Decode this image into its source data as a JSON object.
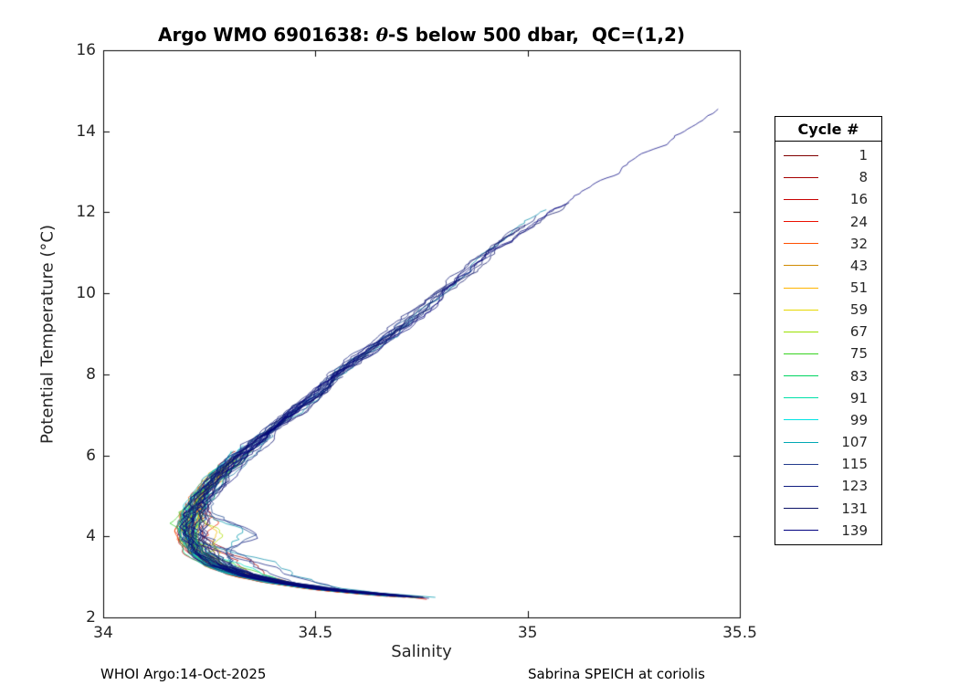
{
  "title": {
    "prefix": "Argo WMO 6901638: ",
    "theta": "θ",
    "suffix": "-S below 500 dbar,  QC=(1,2)"
  },
  "footer": {
    "left": "WHOI Argo:14-Oct-2025",
    "right": "Sabrina SPEICH at coriolis"
  },
  "chart_data": {
    "type": "line",
    "title": "Argo WMO 6901638: θ-S below 500 dbar,  QC=(1,2)",
    "xlabel": "Salinity",
    "ylabel": "Potential Temperature (°C)",
    "xlim": [
      34,
      35.5
    ],
    "ylim": [
      2,
      16
    ],
    "xticks": [
      34,
      34.5,
      35,
      35.5
    ],
    "yticks": [
      2,
      4,
      6,
      8,
      10,
      12,
      14,
      16
    ],
    "grid": false,
    "legend": {
      "title": "Cycle #",
      "position": "right-outside",
      "entries": [
        {
          "label": "1",
          "color": "#800000"
        },
        {
          "label": "8",
          "color": "#a50000"
        },
        {
          "label": "16",
          "color": "#c80000"
        },
        {
          "label": "24",
          "color": "#eb0f00"
        },
        {
          "label": "32",
          "color": "#ff5000"
        },
        {
          "label": "43",
          "color": "#d08a00"
        },
        {
          "label": "51",
          "color": "#ffb400"
        },
        {
          "label": "59",
          "color": "#e6d800"
        },
        {
          "label": "67",
          "color": "#9be100"
        },
        {
          "label": "75",
          "color": "#37d321"
        },
        {
          "label": "83",
          "color": "#00d560"
        },
        {
          "label": "91",
          "color": "#00e0a8"
        },
        {
          "label": "99",
          "color": "#00e4e4"
        },
        {
          "label": "107",
          "color": "#00a8b4"
        },
        {
          "label": "115",
          "color": "#223a8c"
        },
        {
          "label": "123",
          "color": "#101d80"
        },
        {
          "label": "131",
          "color": "#0a1166"
        },
        {
          "label": "139",
          "color": "#000080"
        }
      ]
    },
    "base_curve_T_S": [
      [
        14.55,
        35.45
      ],
      [
        14.0,
        35.36
      ],
      [
        13.0,
        35.21
      ],
      [
        12.0,
        35.04
      ],
      [
        11.5,
        34.97
      ],
      [
        11.0,
        34.91
      ],
      [
        10.5,
        34.855
      ],
      [
        10.0,
        34.8
      ],
      [
        9.5,
        34.745
      ],
      [
        9.0,
        34.68
      ],
      [
        8.5,
        34.615
      ],
      [
        8.0,
        34.55
      ],
      [
        7.5,
        34.5
      ],
      [
        7.0,
        34.44
      ],
      [
        6.5,
        34.38
      ],
      [
        6.0,
        34.32
      ],
      [
        5.5,
        34.27
      ],
      [
        5.0,
        34.235
      ],
      [
        4.6,
        34.215
      ],
      [
        4.2,
        34.205
      ],
      [
        3.9,
        34.21
      ],
      [
        3.6,
        34.225
      ],
      [
        3.3,
        34.265
      ],
      [
        3.05,
        34.33
      ],
      [
        2.85,
        34.42
      ],
      [
        2.7,
        34.52
      ],
      [
        2.6,
        34.62
      ],
      [
        2.52,
        34.71
      ],
      [
        2.47,
        34.77
      ]
    ],
    "plotted_cycles": {
      "from": 1,
      "to": 139
    },
    "theta_range_C": [
      2.45,
      14.55
    ],
    "salinity_range": [
      34.18,
      35.45
    ]
  }
}
